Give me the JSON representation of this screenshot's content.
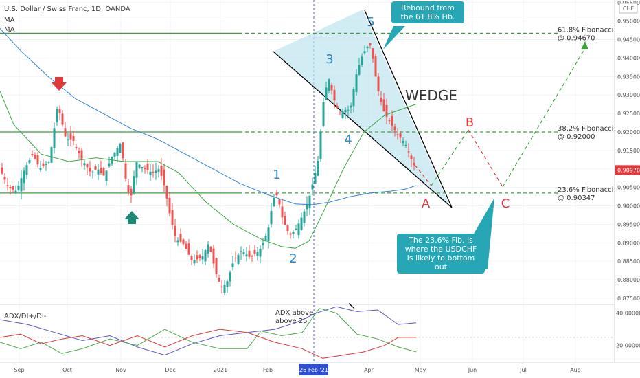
{
  "header": {
    "symbol_line": "U.S. Dollar / Swiss Franc, 1D, OANDA",
    "ma1": "MA",
    "ma2": "MA",
    "currency": "CHF",
    "adx_label": "ADX/DI+/DI-"
  },
  "colors": {
    "up": "#26a69a",
    "down": "#ef5350",
    "ma_fast": "#3ca843",
    "ma_slow": "#2f83d8",
    "annotation_blue": "#2f86c8",
    "annotation_red": "#e0393c",
    "fib_line": "#3aa23a",
    "wedge_fill": "#bfe4ee",
    "callout": "#27a7b6",
    "price_tag": "#e0393c",
    "adx": "#5a55c9",
    "di_plus": "#4aa84a",
    "di_minus": "#e0393c"
  },
  "annotations": {
    "wedge_label": "WEDGE",
    "waves": [
      "1",
      "2",
      "3",
      "4",
      "5"
    ],
    "abc": [
      "A",
      "B",
      "C"
    ],
    "callout_top": "Rebound from\nthe 61.8% Fib.",
    "callout_bottom": "The 23.6% Fib. is\nwhere the USDCHF\nis likely to bottom out",
    "adx_note": "ADX above\nabove 25",
    "fib_618": "61.8% Fibonacci\n@ 0.94670",
    "fib_382": "38.2% Fibonacci\n@ 0.92000",
    "fib_236": "23.6% Fibonacci\n@ 0.90347"
  },
  "chart_data": [
    {
      "type": "candlestick",
      "title": "U.S. Dollar / Swiss Franc, 1D, OANDA",
      "y_axis_side": "right",
      "ylim": [
        0.8735,
        0.9557
      ],
      "price_ticks": [
        "0.95500",
        "0.95000",
        "0.94500",
        "0.94000",
        "0.93500",
        "0.93000",
        "0.92500",
        "0.92000",
        "0.91500",
        "0.91000",
        "0.90500",
        "0.90000",
        "0.89500",
        "0.89000",
        "0.88500",
        "0.88000",
        "0.87500"
      ],
      "current_price": "0.90970",
      "time_ticks": [
        "Sep",
        "Oct",
        "Nov",
        "Dec",
        "2021",
        "Feb",
        "Apr",
        "May",
        "Jun",
        "Jul",
        "Aug"
      ],
      "highlighted_date": "26 Feb '21",
      "series": [
        {
          "name": "MA",
          "role": "fast moving average"
        },
        {
          "name": "MA",
          "role": "slow moving average"
        }
      ],
      "key_prices": [
        {
          "label": "peak (red arrow)",
          "date": "late Sep",
          "value": 0.9295
        },
        {
          "label": "low (green arrow)",
          "date": "early Nov",
          "value": 0.9
        },
        {
          "label": "yearly low",
          "date": "early Jan",
          "value": 0.876
        },
        {
          "label": "1",
          "date": "early Feb",
          "value": 0.9055
        },
        {
          "label": "2",
          "date": "mid Feb",
          "value": 0.8895
        },
        {
          "label": "3",
          "date": "early Mar",
          "value": 0.937
        },
        {
          "label": "4",
          "date": "mid Mar",
          "value": 0.923
        },
        {
          "label": "5",
          "date": "early Apr",
          "value": 0.947
        },
        {
          "label": "last close",
          "date": "late Apr",
          "value": 0.9097
        }
      ],
      "projection": [
        {
          "label": "A",
          "value": 0.9035
        },
        {
          "label": "B",
          "value": 0.92
        },
        {
          "label": "C",
          "value": 0.9035
        },
        {
          "label": "target",
          "value": 0.942
        }
      ],
      "levels": [
        {
          "name": "61.8% Fibonacci",
          "value": 0.9467
        },
        {
          "name": "38.2% Fibonacci",
          "value": 0.92
        },
        {
          "name": "23.6% Fibonacci",
          "value": 0.90347
        }
      ]
    },
    {
      "type": "line",
      "title": "ADX/DI+/DI-",
      "ylim": [
        10,
        45
      ],
      "y_ticks": [
        "40.00000",
        "20.00000"
      ],
      "series": [
        {
          "name": "ADX"
        },
        {
          "name": "DI+"
        },
        {
          "name": "DI-"
        }
      ]
    }
  ]
}
